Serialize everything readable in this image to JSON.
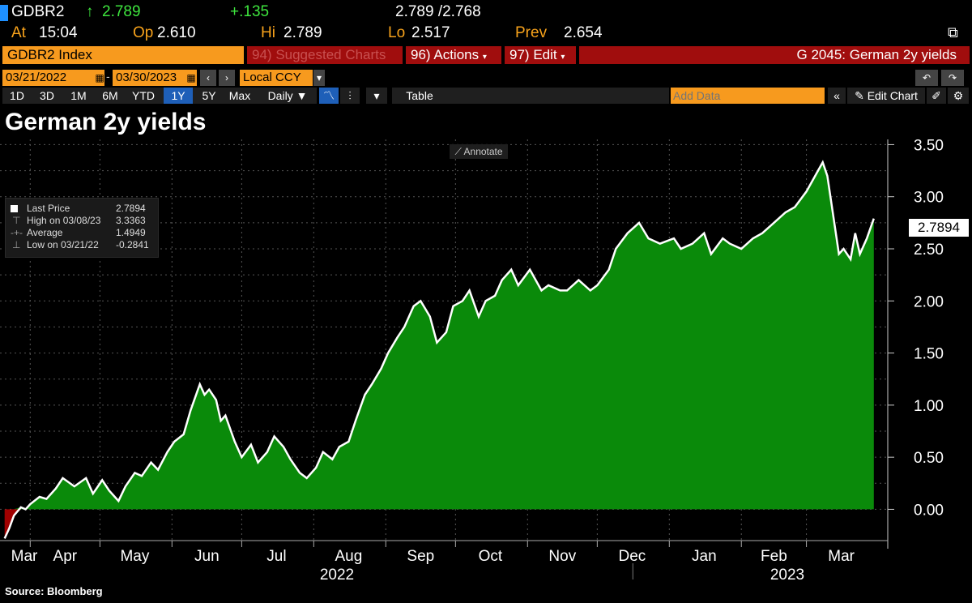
{
  "header": {
    "ticker": "GDBR2",
    "arrow": "↑",
    "last": "2.789",
    "change": "+.135",
    "bid_ask": "2.789 /2.768",
    "at_label": "At",
    "at_value": "15:04",
    "op_label": "Op",
    "op_value": "2.610",
    "hi_label": "Hi",
    "hi_value": "2.789",
    "lo_label": "Lo",
    "lo_value": "2.517",
    "prev_label": "Prev",
    "prev_value": "2.654"
  },
  "command_bar": {
    "security": "GDBR2 Index",
    "suggested_num": "94)",
    "suggested_label": "Suggested Charts",
    "actions_num": "96)",
    "actions_label": "Actions",
    "edit_num": "97)",
    "edit_label": "Edit",
    "function_title": "G 2045: German 2y yields"
  },
  "toolbar": {
    "start_date": "03/21/2022",
    "end_date": "03/30/2023",
    "currency": "Local CCY",
    "periods": [
      "1D",
      "3D",
      "1M",
      "6M",
      "YTD",
      "1Y",
      "5Y",
      "Max"
    ],
    "active_period": "1Y",
    "frequency": "Daily",
    "table_label": "Table",
    "add_data_placeholder": "Add Data",
    "edit_chart_label": "Edit Chart"
  },
  "chart_title": "German 2y yields",
  "annotate_label": "Annotate",
  "legend": {
    "rows": [
      {
        "label": "Last Price",
        "value": "2.7894"
      },
      {
        "label": "High on 03/08/23",
        "value": "3.3363"
      },
      {
        "label": "Average",
        "value": "1.4949"
      },
      {
        "label": "Low on 03/21/22",
        "value": "-0.2841"
      }
    ]
  },
  "last_price_tag": "2.7894",
  "source": "Source: Bloomberg",
  "colors": {
    "area_positive": "#0a8a0a",
    "area_negative": "#a00000",
    "line": "#ffffff",
    "amber": "#f7a21b",
    "up_green": "#3ee53e"
  },
  "chart_data": {
    "type": "area",
    "title": "German 2y yields",
    "xlabel": "",
    "ylabel": "",
    "ylim": [
      -0.3,
      3.55
    ],
    "yticks": [
      "0.00",
      "0.50",
      "1.00",
      "1.50",
      "2.00",
      "2.50",
      "3.00",
      "3.50"
    ],
    "month_ticks": [
      "Mar",
      "Apr",
      "May",
      "Jun",
      "Jul",
      "Aug",
      "Sep",
      "Oct",
      "Nov",
      "Dec",
      "Jan",
      "Feb",
      "Mar"
    ],
    "year_labels": [
      "2022",
      "2023"
    ],
    "grid": true,
    "series": [
      {
        "name": "Last Price",
        "x": [
          "2022-03-21",
          "2022-03-23",
          "2022-03-25",
          "2022-03-28",
          "2022-03-30",
          "2022-04-01",
          "2022-04-05",
          "2022-04-08",
          "2022-04-12",
          "2022-04-15",
          "2022-04-20",
          "2022-04-25",
          "2022-04-28",
          "2022-05-02",
          "2022-05-05",
          "2022-05-09",
          "2022-05-12",
          "2022-05-16",
          "2022-05-19",
          "2022-05-23",
          "2022-05-26",
          "2022-05-30",
          "2022-06-02",
          "2022-06-06",
          "2022-06-09",
          "2022-06-13",
          "2022-06-15",
          "2022-06-17",
          "2022-06-20",
          "2022-06-22",
          "2022-06-24",
          "2022-06-28",
          "2022-07-01",
          "2022-07-05",
          "2022-07-08",
          "2022-07-12",
          "2022-07-15",
          "2022-07-19",
          "2022-07-22",
          "2022-07-26",
          "2022-07-29",
          "2022-08-02",
          "2022-08-05",
          "2022-08-09",
          "2022-08-12",
          "2022-08-16",
          "2022-08-19",
          "2022-08-23",
          "2022-08-26",
          "2022-08-30",
          "2022-09-02",
          "2022-09-06",
          "2022-09-09",
          "2022-09-13",
          "2022-09-16",
          "2022-09-20",
          "2022-09-23",
          "2022-09-27",
          "2022-09-30",
          "2022-10-04",
          "2022-10-07",
          "2022-10-11",
          "2022-10-14",
          "2022-10-18",
          "2022-10-21",
          "2022-10-25",
          "2022-10-28",
          "2022-11-02",
          "2022-11-07",
          "2022-11-10",
          "2022-11-15",
          "2022-11-18",
          "2022-11-23",
          "2022-11-28",
          "2022-12-01",
          "2022-12-06",
          "2022-12-09",
          "2022-12-14",
          "2022-12-19",
          "2022-12-23",
          "2022-12-28",
          "2023-01-03",
          "2023-01-06",
          "2023-01-11",
          "2023-01-16",
          "2023-01-19",
          "2023-01-24",
          "2023-01-27",
          "2023-02-01",
          "2023-02-06",
          "2023-02-10",
          "2023-02-15",
          "2023-02-20",
          "2023-02-24",
          "2023-03-01",
          "2023-03-06",
          "2023-03-08",
          "2023-03-10",
          "2023-03-13",
          "2023-03-15",
          "2023-03-17",
          "2023-03-20",
          "2023-03-22",
          "2023-03-24",
          "2023-03-27",
          "2023-03-30"
        ],
        "y": [
          -0.28,
          -0.18,
          -0.06,
          0.02,
          0.0,
          0.05,
          0.12,
          0.1,
          0.2,
          0.3,
          0.22,
          0.3,
          0.15,
          0.28,
          0.18,
          0.08,
          0.22,
          0.35,
          0.32,
          0.45,
          0.38,
          0.55,
          0.65,
          0.72,
          0.95,
          1.2,
          1.1,
          1.15,
          1.05,
          0.85,
          0.9,
          0.65,
          0.5,
          0.62,
          0.45,
          0.55,
          0.7,
          0.6,
          0.48,
          0.35,
          0.3,
          0.4,
          0.55,
          0.48,
          0.6,
          0.65,
          0.85,
          1.1,
          1.2,
          1.35,
          1.5,
          1.65,
          1.75,
          1.95,
          2.0,
          1.85,
          1.6,
          1.7,
          1.95,
          2.0,
          2.1,
          1.85,
          2.0,
          2.05,
          2.2,
          2.3,
          2.15,
          2.3,
          2.1,
          2.15,
          2.1,
          2.1,
          2.2,
          2.1,
          2.15,
          2.3,
          2.5,
          2.65,
          2.75,
          2.6,
          2.55,
          2.6,
          2.5,
          2.55,
          2.65,
          2.45,
          2.6,
          2.55,
          2.5,
          2.6,
          2.65,
          2.75,
          2.85,
          2.9,
          3.05,
          3.25,
          3.33,
          3.2,
          2.75,
          2.45,
          2.5,
          2.4,
          2.65,
          2.45,
          2.6,
          2.79
        ]
      }
    ]
  }
}
